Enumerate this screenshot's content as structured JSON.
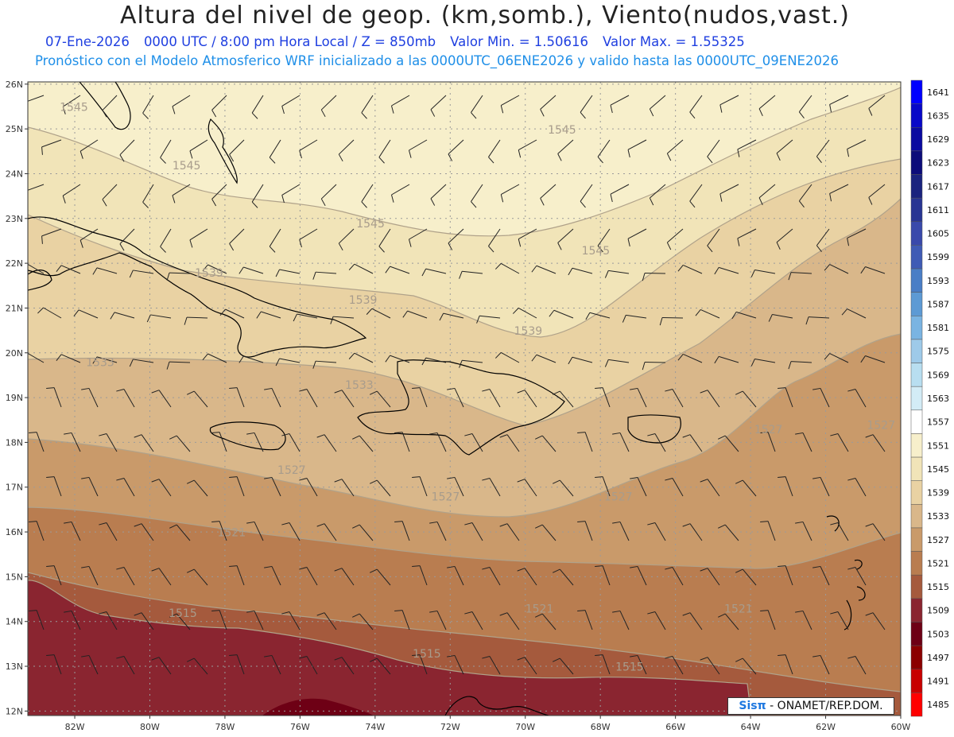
{
  "title": "Altura del nivel de geop. (km,somb.), Viento(nudos,vast.)",
  "subtitle": {
    "date": "07-Ene-2026",
    "time": "0000 UTC / 8:00 pm Hora Local / Z = 850mb",
    "min": "Valor Min. = 1.50616",
    "max": "Valor Max. = 1.55325"
  },
  "model_note": "Pronóstico con el Modelo Atmosferico WRF inicializado a las 0000UTC_06ENE2026 y valido hasta las  0000UTC_09ENE2026",
  "credit": {
    "logo": "Sisπ",
    "text": "- ONAMET/REP.DOM."
  },
  "lat_labels": [
    "26N",
    "25N",
    "24N",
    "23N",
    "22N",
    "21N",
    "20N",
    "19N",
    "18N",
    "17N",
    "16N",
    "15N",
    "14N",
    "13N",
    "12N"
  ],
  "lon_labels": [
    "82W",
    "80W",
    "78W",
    "76W",
    "74W",
    "72W",
    "70W",
    "68W",
    "66W",
    "64W",
    "62W",
    "60W"
  ],
  "colorbar": {
    "levels": [
      "1641",
      "1635",
      "1629",
      "1623",
      "1617",
      "1611",
      "1605",
      "1599",
      "1593",
      "1587",
      "1581",
      "1575",
      "1569",
      "1563",
      "1557",
      "1551",
      "1545",
      "1539",
      "1533",
      "1527",
      "1521",
      "1515",
      "1509",
      "1503",
      "1497",
      "1491",
      "1485"
    ],
    "colors": [
      "#0000ff",
      "#0808c8",
      "#0a0aa0",
      "#0c0c7a",
      "#1a237e",
      "#283593",
      "#3949ab",
      "#3f5bb5",
      "#4a7ec6",
      "#5d9ad4",
      "#7ab4e2",
      "#9ecae9",
      "#b8def0",
      "#d3ecf6",
      "#ffffff",
      "#f7efcb",
      "#f1e4b8",
      "#e9d2a3",
      "#d9b78a",
      "#c99a6a",
      "#b97d50",
      "#a55a3d",
      "#8a2530",
      "#6e0015",
      "#8b0000",
      "#c80000",
      "#ff0000"
    ]
  },
  "contour_labels": [
    {
      "text": "1545",
      "lat": 25.4,
      "lon": -82.4
    },
    {
      "text": "1545",
      "lat": 24.1,
      "lon": -79.4
    },
    {
      "text": "1545",
      "lat": 22.8,
      "lon": -74.5
    },
    {
      "text": "1545",
      "lat": 24.9,
      "lon": -69.4
    },
    {
      "text": "1545",
      "lat": 22.2,
      "lon": -68.5
    },
    {
      "text": "1539",
      "lat": 21.7,
      "lon": -78.8
    },
    {
      "text": "1539",
      "lat": 21.1,
      "lon": -74.7
    },
    {
      "text": "1539",
      "lat": 20.4,
      "lon": -70.3
    },
    {
      "text": "1533",
      "lat": 19.7,
      "lon": -81.7
    },
    {
      "text": "1533",
      "lat": 19.2,
      "lon": -74.8
    },
    {
      "text": "1527",
      "lat": 17.3,
      "lon": -76.6
    },
    {
      "text": "1527",
      "lat": 16.7,
      "lon": -72.5
    },
    {
      "text": "1527",
      "lat": 16.7,
      "lon": -67.9
    },
    {
      "text": "1527",
      "lat": 18.2,
      "lon": -63.9
    },
    {
      "text": "1527",
      "lat": 18.3,
      "lon": -60.9
    },
    {
      "text": "1521",
      "lat": 15.9,
      "lon": -78.2
    },
    {
      "text": "1521",
      "lat": 14.2,
      "lon": -70.0
    },
    {
      "text": "1521",
      "lat": 14.2,
      "lon": -64.7
    },
    {
      "text": "1515",
      "lat": 14.1,
      "lon": -79.5
    },
    {
      "text": "1515",
      "lat": 13.2,
      "lon": -73.0
    },
    {
      "text": "1515",
      "lat": 12.9,
      "lon": -67.6
    }
  ]
}
